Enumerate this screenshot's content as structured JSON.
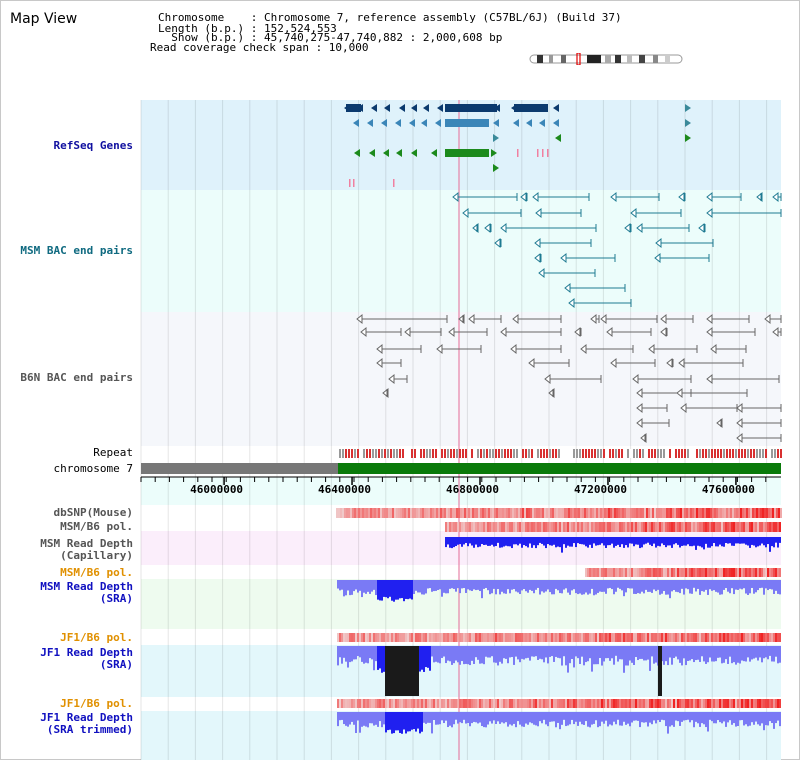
{
  "map_view": {
    "title": "Map View"
  },
  "header": {
    "chromosome_line": "Chromosome    : Chromosome 7, reference assembly (C57BL/6J) (Build 37)",
    "length_line": "Length (b.p.) : 152,524,553",
    "show_line": "  Show (b.p.) : 45,740,275-47,740,882 : 2,000,608 bp",
    "coverage_line": "Read coverage check span : 10,000"
  },
  "tracks": {
    "refseq": "RefSeq Genes",
    "msm_bac": "MSM BAC end pairs",
    "b6n_bac": "B6N BAC end pairs",
    "repeat": "Repeat",
    "chromosome": "chromosome 7",
    "dbsnp": "dbSNP(Mouse)",
    "msm_pol1": "MSM/B6 pol.",
    "msm_depth_cap_1": "MSM Read Depth",
    "msm_depth_cap_2": "(Capillary)",
    "msm_pol2": "MSM/B6 pol.",
    "msm_depth_sra_1": "MSM Read Depth",
    "msm_depth_sra_2": "(SRA)",
    "jf1_pol1": "JF1/B6 pol.",
    "jf1_depth_sra_1": "JF1 Read Depth",
    "jf1_depth_sra_2": "(SRA)",
    "jf1_pol2": "JF1/B6 pol.",
    "jf1_depth_trim_1": "JF1 Read Depth",
    "jf1_depth_trim_2": "(SRA trimmed)"
  },
  "axis": {
    "ticks": [
      "46000000",
      "46400000",
      "46800000",
      "47200000",
      "47600000"
    ],
    "tick_values": [
      46000000,
      46400000,
      46800000,
      47200000,
      47600000
    ],
    "start": 45740275,
    "end": 47740882
  },
  "colors": {
    "refseq_bg": "#dff2fb",
    "refseq_band": "#bfe4f5",
    "msm_bac_bg": "#ecfdfb",
    "b6n_bac_bg": "#f5f7fb",
    "gene_dark": "#0b3a6e",
    "gene_mid": "#3b86b8",
    "gene_green": "#1c8a1c",
    "msm_bac": "#1e7a92",
    "b6n_bac": "#666666",
    "chrom_gray": "#777777",
    "chrom_green": "#0a7a0a",
    "depth_blue": "#2020f0",
    "depth_light": "#7a7af5",
    "black": "#1a1a1a"
  }
}
